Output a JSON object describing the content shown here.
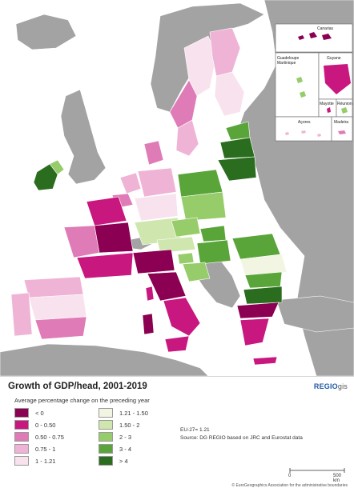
{
  "title": "Growth of GDP/head, 2001-2019",
  "brand": {
    "main": "REGIO",
    "suffix": "gis"
  },
  "legend": {
    "subtitle": "Average percentage change on the preceding year",
    "classes": [
      {
        "label": "< 0",
        "color": "#8b0052"
      },
      {
        "label": "0 - 0.50",
        "color": "#c8177f"
      },
      {
        "label": "0.50 - 0.75",
        "color": "#df7bb6"
      },
      {
        "label": "0.75 - 1",
        "color": "#efb4d5"
      },
      {
        "label": "1 - 1.21",
        "color": "#f8e2ee"
      },
      {
        "label": "1.21 - 1.50",
        "color": "#f2f5e2"
      },
      {
        "label": "1.50 - 2",
        "color": "#cfe6ae"
      },
      {
        "label": "2 - 3",
        "color": "#97cc6a"
      },
      {
        "label": "3 - 4",
        "color": "#5aa53a"
      },
      {
        "label": "> 4",
        "color": "#2a6d1e"
      }
    ]
  },
  "notes": {
    "eu_value": "EU-27= 1.21",
    "source": "Source: DG REGIO based on JRC and Eurostat data"
  },
  "scale": {
    "start": "0",
    "end": "500 km"
  },
  "copyright": "© EuroGeographics Association for the administrative boundaries",
  "insets": {
    "canarias": "Canarias",
    "guadeloupe": "Guadeloupe",
    "martinique": "Martinique",
    "guyane": "Guyane",
    "mayotte": "Mayotte",
    "reunion": "Réunion",
    "acores": "Açores",
    "madeira": "Madeira"
  },
  "colors": {
    "sea": "#ffffff",
    "non_eu_land": "#a3a3a3",
    "border": "#ffffff"
  }
}
